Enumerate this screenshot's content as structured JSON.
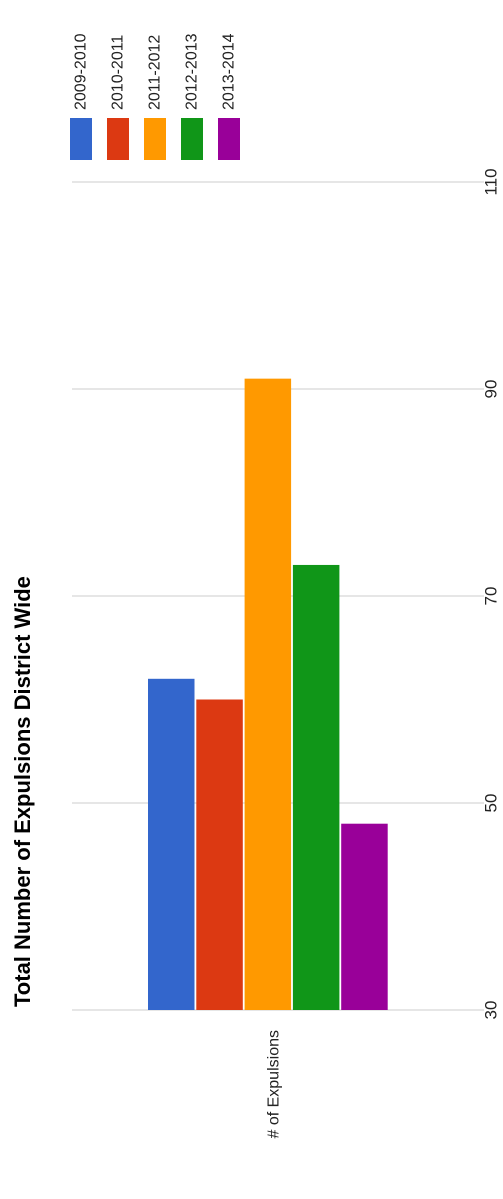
{
  "chart_data": {
    "type": "bar",
    "title": "Total Number of Expulsions District Wide",
    "categories": [
      "# of Expulsions"
    ],
    "series": [
      {
        "name": "2009-2010",
        "values": [
          62
        ],
        "color": "#3366cc"
      },
      {
        "name": "2010-2011",
        "values": [
          60
        ],
        "color": "#dc3912"
      },
      {
        "name": "2011-2012",
        "values": [
          91
        ],
        "color": "#ff9900"
      },
      {
        "name": "2012-2013",
        "values": [
          73
        ],
        "color": "#109618"
      },
      {
        "name": "2013-2014",
        "values": [
          48
        ],
        "color": "#990099"
      }
    ],
    "xlabel": "",
    "ylabel": "",
    "ylim": [
      30,
      110
    ],
    "yticks": [
      "30",
      "50",
      "70",
      "90",
      "110"
    ],
    "grid": true,
    "legend_position": "top",
    "orientation": "rotated 90 degrees counter-clockwise"
  }
}
